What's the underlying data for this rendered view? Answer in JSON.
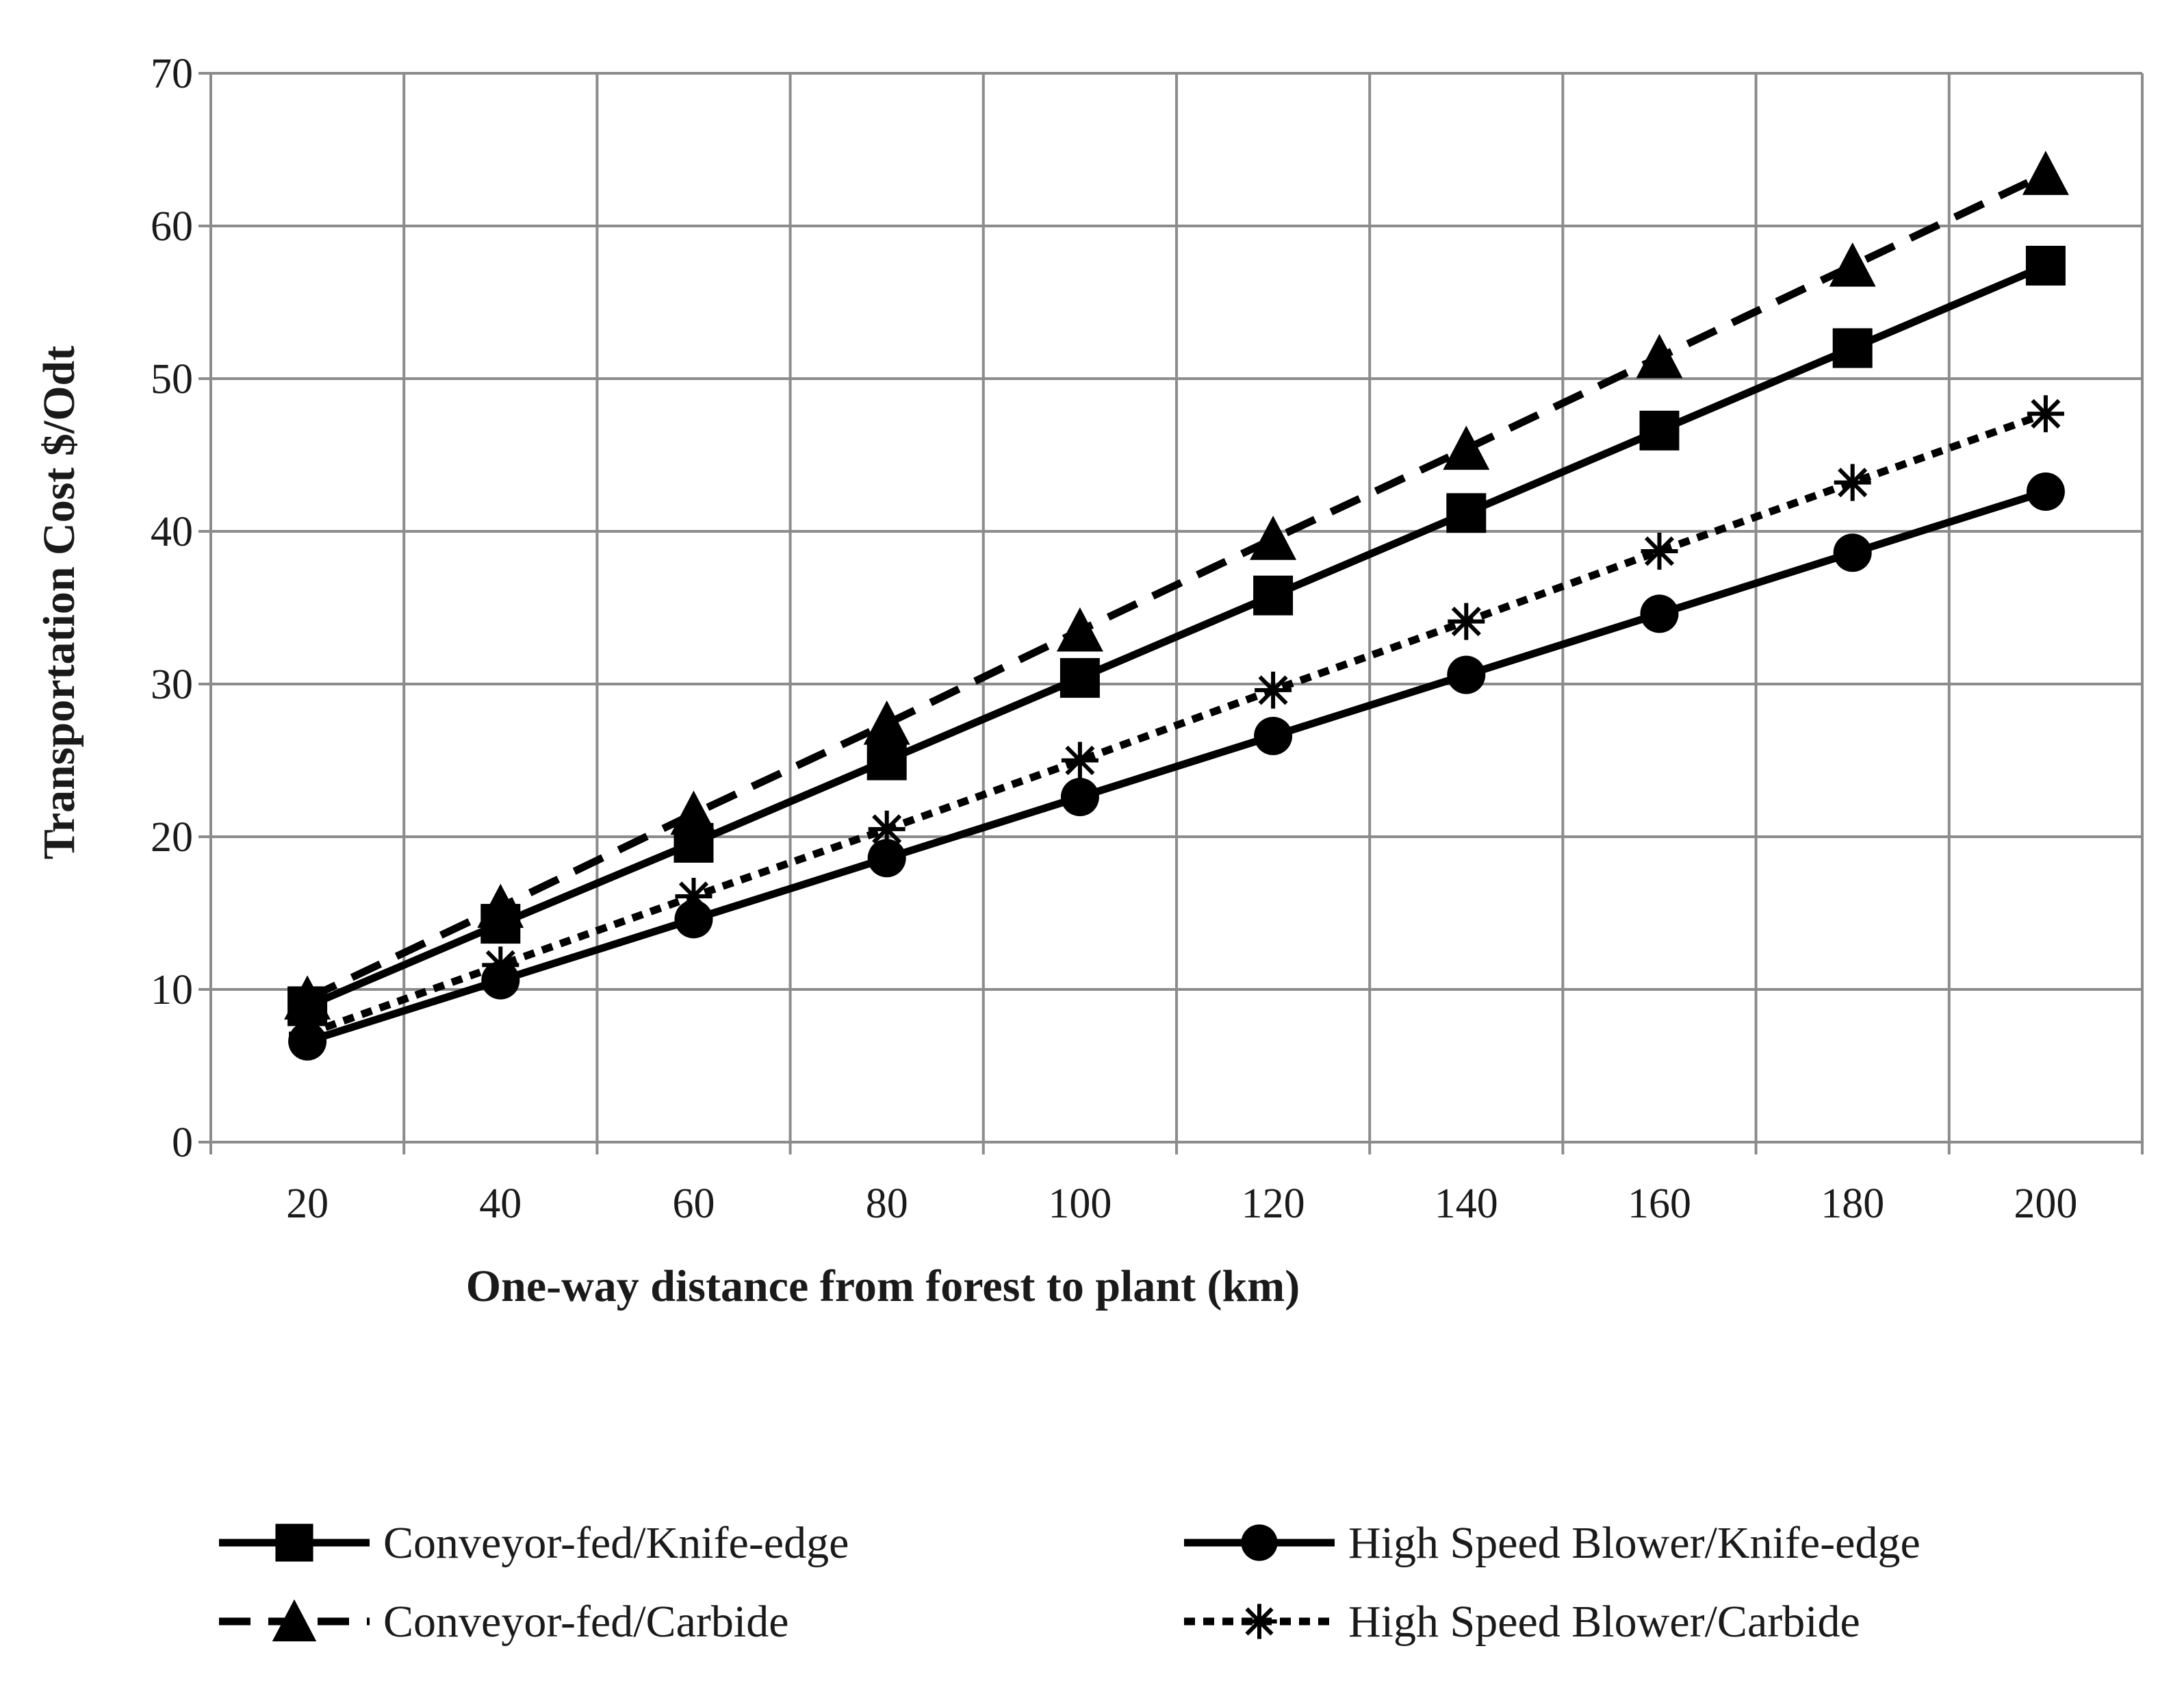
{
  "chart_data": {
    "type": "line",
    "title": "",
    "xlabel": "One-way distance from forest to plant (km)",
    "ylabel": "Transportation Cost $/Odt",
    "categories": [
      "20",
      "40",
      "60",
      "80",
      "100",
      "120",
      "140",
      "160",
      "180",
      "200"
    ],
    "x": [
      20,
      40,
      60,
      80,
      100,
      120,
      140,
      160,
      180,
      200
    ],
    "ylim": [
      0,
      70
    ],
    "yticks": [
      "0",
      "10",
      "20",
      "30",
      "40",
      "50",
      "60",
      "70"
    ],
    "grid": true,
    "legend_position": "bottom",
    "series": [
      {
        "name": "Conveyor-fed/Knife-edge",
        "marker": "square",
        "line_style": "solid",
        "values": [
          8.9,
          14.3,
          19.6,
          25.0,
          30.4,
          35.8,
          41.2,
          46.6,
          52.0,
          57.4
        ]
      },
      {
        "name": "High Speed Blower/Knife-edge",
        "marker": "circle",
        "line_style": "solid",
        "values": [
          6.6,
          10.6,
          14.6,
          18.6,
          22.6,
          26.6,
          30.6,
          34.6,
          38.6,
          42.6
        ]
      },
      {
        "name": "Conveyor-fed/Carbide",
        "marker": "triangle",
        "line_style": "dashed",
        "values": [
          9.4,
          15.4,
          21.5,
          27.4,
          33.5,
          39.5,
          45.4,
          51.4,
          57.4,
          63.4
        ]
      },
      {
        "name": "High Speed Blower/Carbide",
        "marker": "asterisk",
        "line_style": "dotted",
        "values": [
          7.1,
          11.6,
          16.1,
          20.5,
          25.0,
          29.6,
          34.1,
          38.7,
          43.2,
          47.7
        ]
      }
    ]
  },
  "colors": {
    "line": "#000000",
    "grid": "#8c8c8c",
    "background": "#ffffff"
  }
}
